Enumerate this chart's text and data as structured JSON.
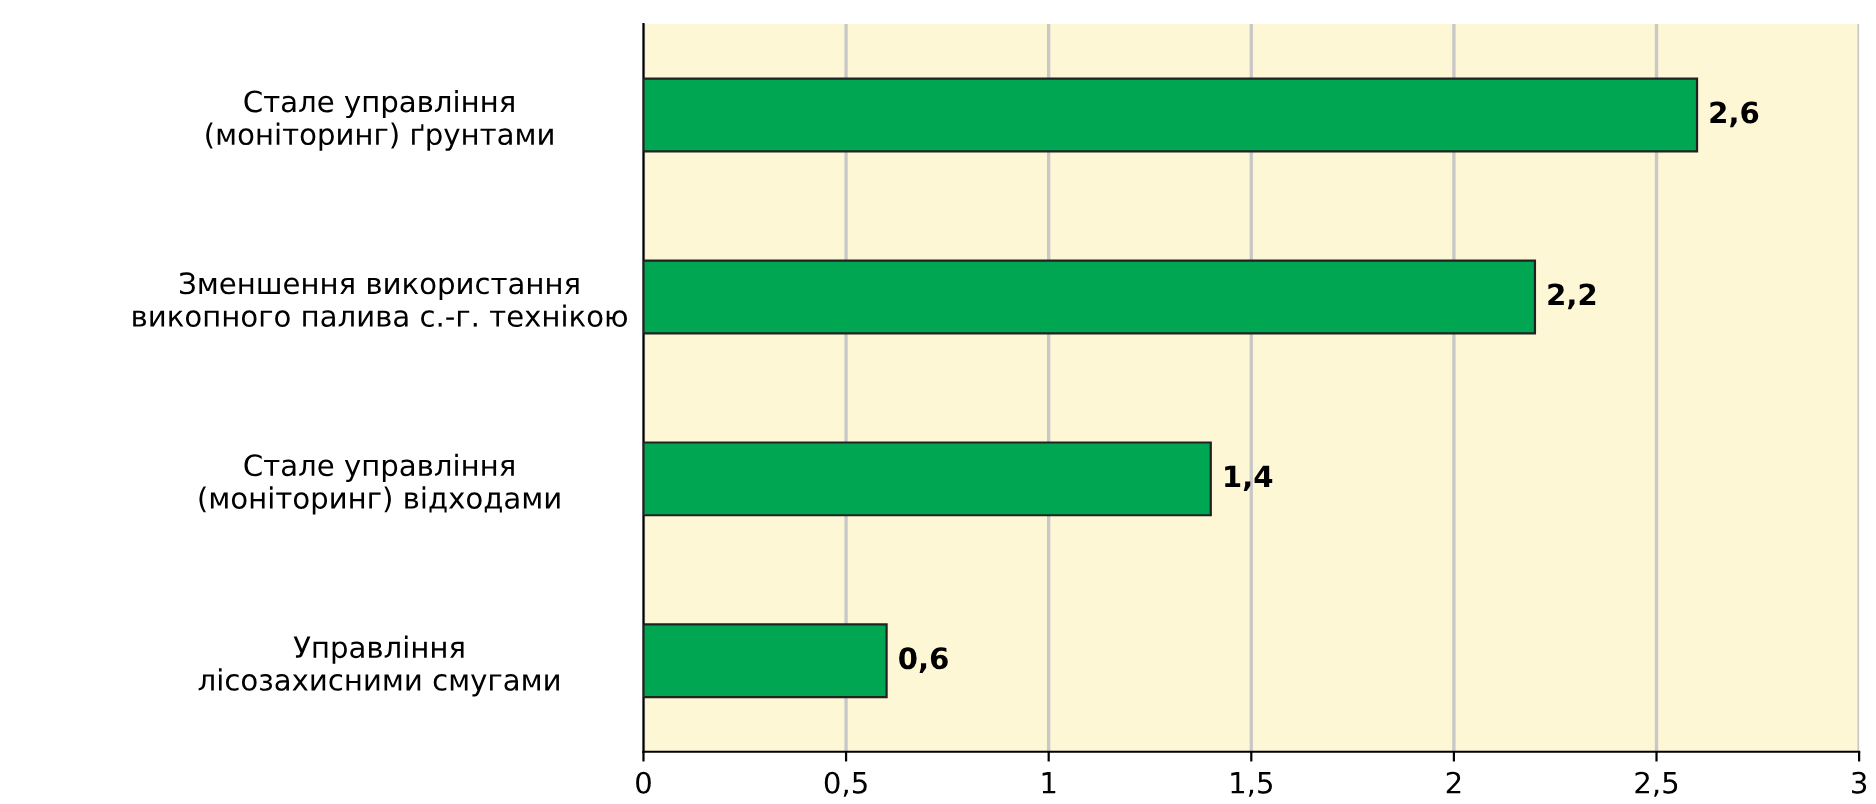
{
  "chart_data": {
    "type": "bar",
    "orientation": "horizontal",
    "categories": [
      "Стале управління\n(моніторинг) ґрунтами",
      "Зменшення використання\nвикопного палива с.-г. технікою",
      "Стале управління\n(моніторинг) відходами",
      "Управління\nлісозахисними смугами"
    ],
    "values": [
      2.6,
      2.2,
      1.4,
      0.6
    ],
    "value_labels": [
      "2,6",
      "2,2",
      "1,4",
      "0,6"
    ],
    "color": "#00a651",
    "xlim": [
      0,
      3
    ],
    "xticks": [
      0,
      {
        "value": 0.5,
        "label": "0,5"
      },
      1,
      {
        "value": 1.5,
        "label": "1,5"
      },
      2,
      {
        "value": 2.5,
        "label": "2,5"
      },
      3
    ],
    "grid": "x"
  }
}
